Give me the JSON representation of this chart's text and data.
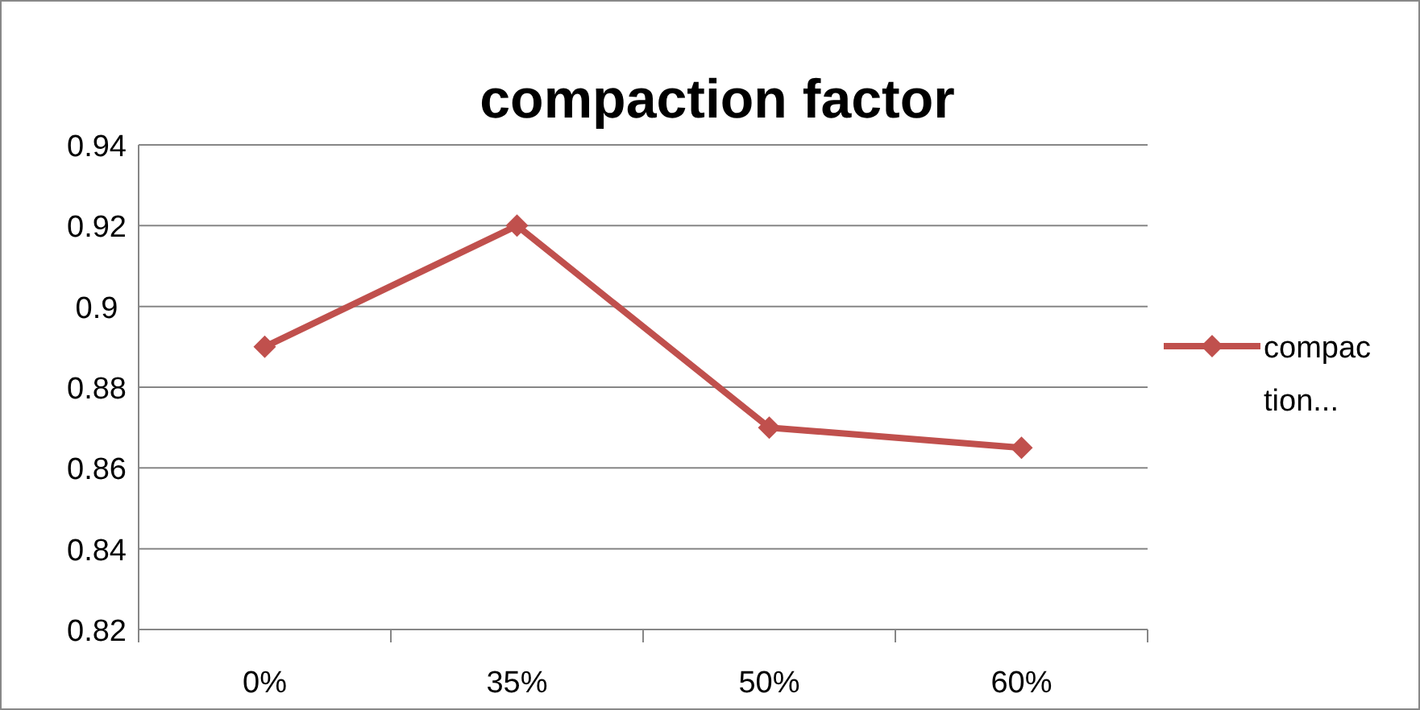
{
  "chart_data": {
    "type": "line",
    "title": "compaction factor",
    "categories": [
      "0%",
      "35%",
      "50%",
      "60%"
    ],
    "series": [
      {
        "name": "compaction...",
        "color": "#c0504d",
        "values": [
          0.89,
          0.92,
          0.87,
          0.865
        ]
      }
    ],
    "ylim": [
      0.82,
      0.94
    ],
    "yticks": [
      0.82,
      0.84,
      0.86,
      0.88,
      0.9,
      0.92,
      0.94
    ],
    "grid": "y",
    "legend": "right",
    "marker": "diamond",
    "line_style": "solid"
  }
}
